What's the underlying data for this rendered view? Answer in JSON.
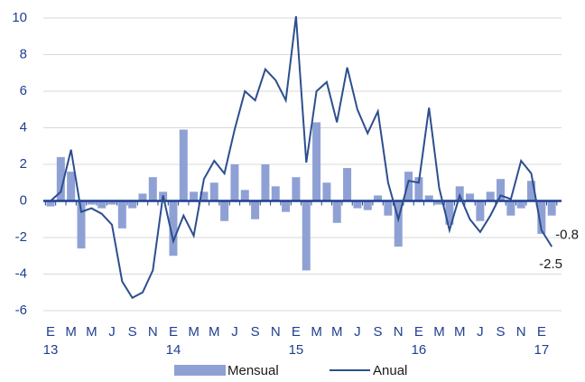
{
  "chart_data": {
    "type": "bar-line",
    "categories": [
      "E",
      null,
      "M",
      null,
      "M",
      null,
      "J",
      null,
      "S",
      null,
      "N",
      null,
      "E",
      null,
      "M",
      null,
      "M",
      null,
      "J",
      null,
      "S",
      null,
      "N",
      null,
      "E",
      null,
      "M",
      null,
      "M",
      null,
      "J",
      null,
      "S",
      null,
      "N",
      null,
      "E",
      null,
      "M",
      null,
      "M",
      null,
      "J",
      null,
      "S",
      null,
      "N",
      null,
      "E",
      null
    ],
    "category_groups": [
      "13",
      "14",
      "15",
      "16",
      "17"
    ],
    "series": [
      {
        "name": "Mensual",
        "type": "bar",
        "color": "#8fa1d4",
        "values": [
          -0.3,
          2.4,
          1.6,
          -2.6,
          -0.2,
          -0.4,
          -0.2,
          -1.5,
          -0.4,
          0.4,
          1.3,
          0.5,
          -3.0,
          3.9,
          0.5,
          0.5,
          1.0,
          -1.1,
          2.0,
          0.6,
          -1.0,
          2.0,
          0.8,
          -0.6,
          1.3,
          -3.8,
          4.3,
          1.0,
          -1.2,
          1.8,
          -0.4,
          -0.5,
          0.3,
          -0.8,
          -2.5,
          1.6,
          1.3,
          0.3,
          -0.2,
          -1.3,
          0.8,
          0.4,
          -1.1,
          0.5,
          1.2,
          -0.8,
          -0.4,
          1.1,
          -1.8,
          -0.8
        ],
        "value_labels": [
          null,
          null,
          null,
          null,
          null,
          null,
          null,
          null,
          null,
          null,
          null,
          null,
          null,
          null,
          null,
          null,
          null,
          null,
          null,
          null,
          null,
          null,
          null,
          null,
          null,
          null,
          null,
          null,
          null,
          null,
          null,
          null,
          null,
          null,
          null,
          null,
          null,
          null,
          null,
          null,
          null,
          null,
          null,
          null,
          null,
          null,
          null,
          null,
          null,
          "-0.8"
        ]
      },
      {
        "name": "Anual",
        "type": "line",
        "color": "#2c4f8e",
        "values": [
          0.0,
          0.5,
          2.8,
          -0.6,
          -0.4,
          -0.7,
          -1.3,
          -4.4,
          -5.3,
          -5.0,
          -3.8,
          0.3,
          -2.2,
          -0.8,
          -1.9,
          1.2,
          2.2,
          1.5,
          3.9,
          6.0,
          5.5,
          7.2,
          6.6,
          5.5,
          10.1,
          2.1,
          6.0,
          6.5,
          4.3,
          7.3,
          5.0,
          3.7,
          4.9,
          1.0,
          -1.0,
          1.1,
          1.0,
          5.1,
          0.7,
          -1.6,
          0.3,
          -1.0,
          -1.7,
          -0.8,
          0.3,
          0.1,
          2.2,
          1.5,
          -1.6,
          -2.5
        ],
        "value_labels": [
          null,
          null,
          null,
          null,
          null,
          null,
          null,
          null,
          null,
          null,
          null,
          null,
          null,
          null,
          null,
          null,
          null,
          null,
          null,
          null,
          null,
          null,
          null,
          null,
          null,
          null,
          null,
          null,
          null,
          null,
          null,
          null,
          null,
          null,
          null,
          null,
          null,
          null,
          null,
          null,
          null,
          null,
          null,
          null,
          null,
          null,
          null,
          null,
          null,
          "-2.5"
        ]
      }
    ],
    "ylim": [
      -6,
      10
    ],
    "yticks": [
      -6,
      -4,
      -2,
      0,
      2,
      4,
      6,
      8,
      10
    ],
    "grid": true,
    "legend": "bottom"
  }
}
